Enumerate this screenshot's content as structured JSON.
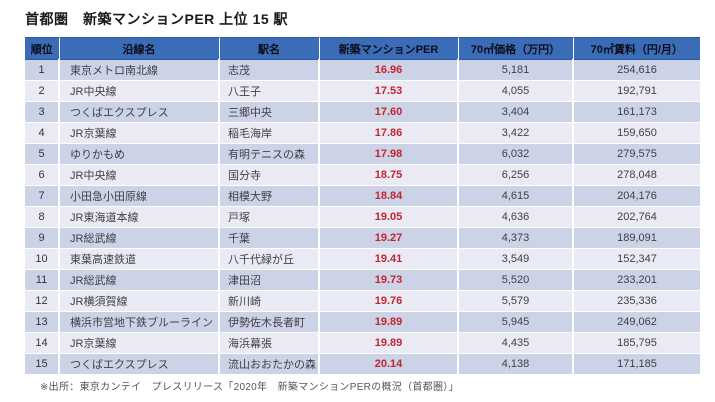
{
  "title": "首都圏　新築マンションPER 上位 15 駅",
  "source_note": "※出所：東京カンテイ　プレスリリース「2020年　新築マンションPERの概況（首都圏）」",
  "colors": {
    "header_bg": "#3a6cb7",
    "row_odd_bg": "#cdd3e6",
    "row_even_bg": "#e9eaf4",
    "per_value_red": "#c2262e"
  },
  "table": {
    "headers": [
      "順位",
      "沿線名",
      "駅名",
      "新築マンションPER",
      "70㎡価格（万円）",
      "70㎡賃料（円/月）"
    ],
    "rows": [
      [
        "1",
        "東京メトロ南北線",
        "志茂",
        "16.96",
        "5,181",
        "254,616"
      ],
      [
        "2",
        "JR中央線",
        "八王子",
        "17.53",
        "4,055",
        "192,791"
      ],
      [
        "3",
        "つくばエクスプレス",
        "三郷中央",
        "17.60",
        "3,404",
        "161,173"
      ],
      [
        "4",
        "JR京葉線",
        "稲毛海岸",
        "17.86",
        "3,422",
        "159,650"
      ],
      [
        "5",
        "ゆりかもめ",
        "有明テニスの森",
        "17.98",
        "6,032",
        "279,575"
      ],
      [
        "6",
        "JR中央線",
        "国分寺",
        "18.75",
        "6,256",
        "278,048"
      ],
      [
        "7",
        "小田急小田原線",
        "相模大野",
        "18.84",
        "4,615",
        "204,176"
      ],
      [
        "8",
        "JR東海道本線",
        "戸塚",
        "19.05",
        "4,636",
        "202,764"
      ],
      [
        "9",
        "JR総武線",
        "千葉",
        "19.27",
        "4,373",
        "189,091"
      ],
      [
        "10",
        "東葉高速鉄道",
        "八千代緑が丘",
        "19.41",
        "3,549",
        "152,347"
      ],
      [
        "11",
        "JR総武線",
        "津田沼",
        "19.73",
        "5,520",
        "233,201"
      ],
      [
        "12",
        "JR横須賀線",
        "新川崎",
        "19.76",
        "5,579",
        "235,336"
      ],
      [
        "13",
        "横浜市営地下鉄ブルーライン",
        "伊勢佐木長者町",
        "19.89",
        "5,945",
        "249,062"
      ],
      [
        "14",
        "JR京葉線",
        "海浜幕張",
        "19.89",
        "4,435",
        "185,795"
      ],
      [
        "15",
        "つくばエクスプレス",
        "流山おおたかの森",
        "20.14",
        "4,138",
        "171,185"
      ]
    ]
  },
  "chart_data": {
    "type": "table",
    "title": "首都圏　新築マンションPER 上位 15 駅",
    "columns": [
      "順位",
      "沿線名",
      "駅名",
      "新築マンションPER",
      "70㎡価格（万円）",
      "70㎡賃料（円/月）"
    ],
    "rows": [
      [
        1,
        "東京メトロ南北線",
        "志茂",
        16.96,
        5181,
        254616
      ],
      [
        2,
        "JR中央線",
        "八王子",
        17.53,
        4055,
        192791
      ],
      [
        3,
        "つくばエクスプレス",
        "三郷中央",
        17.6,
        3404,
        161173
      ],
      [
        4,
        "JR京葉線",
        "稲毛海岸",
        17.86,
        3422,
        159650
      ],
      [
        5,
        "ゆりかもめ",
        "有明テニスの森",
        17.98,
        6032,
        279575
      ],
      [
        6,
        "JR中央線",
        "国分寺",
        18.75,
        6256,
        278048
      ],
      [
        7,
        "小田急小田原線",
        "相模大野",
        18.84,
        4615,
        204176
      ],
      [
        8,
        "JR東海道本線",
        "戸塚",
        19.05,
        4636,
        202764
      ],
      [
        9,
        "JR総武線",
        "千葉",
        19.27,
        4373,
        189091
      ],
      [
        10,
        "東葉高速鉄道",
        "八千代緑が丘",
        19.41,
        3549,
        152347
      ],
      [
        11,
        "JR総武線",
        "津田沼",
        19.73,
        5520,
        233201
      ],
      [
        12,
        "JR横須賀線",
        "新川崎",
        19.76,
        5579,
        235336
      ],
      [
        13,
        "横浜市営地下鉄ブルーライン",
        "伊勢佐木長者町",
        19.89,
        5945,
        249062
      ],
      [
        14,
        "JR京葉線",
        "海浜幕張",
        19.89,
        4435,
        185795
      ],
      [
        15,
        "つくばエクスプレス",
        "流山おおたかの森",
        20.14,
        4138,
        171185
      ]
    ],
    "source": "※出所：東京カンテイ　プレスリリース「2020年　新築マンションPERの概況（首都圏）」"
  }
}
